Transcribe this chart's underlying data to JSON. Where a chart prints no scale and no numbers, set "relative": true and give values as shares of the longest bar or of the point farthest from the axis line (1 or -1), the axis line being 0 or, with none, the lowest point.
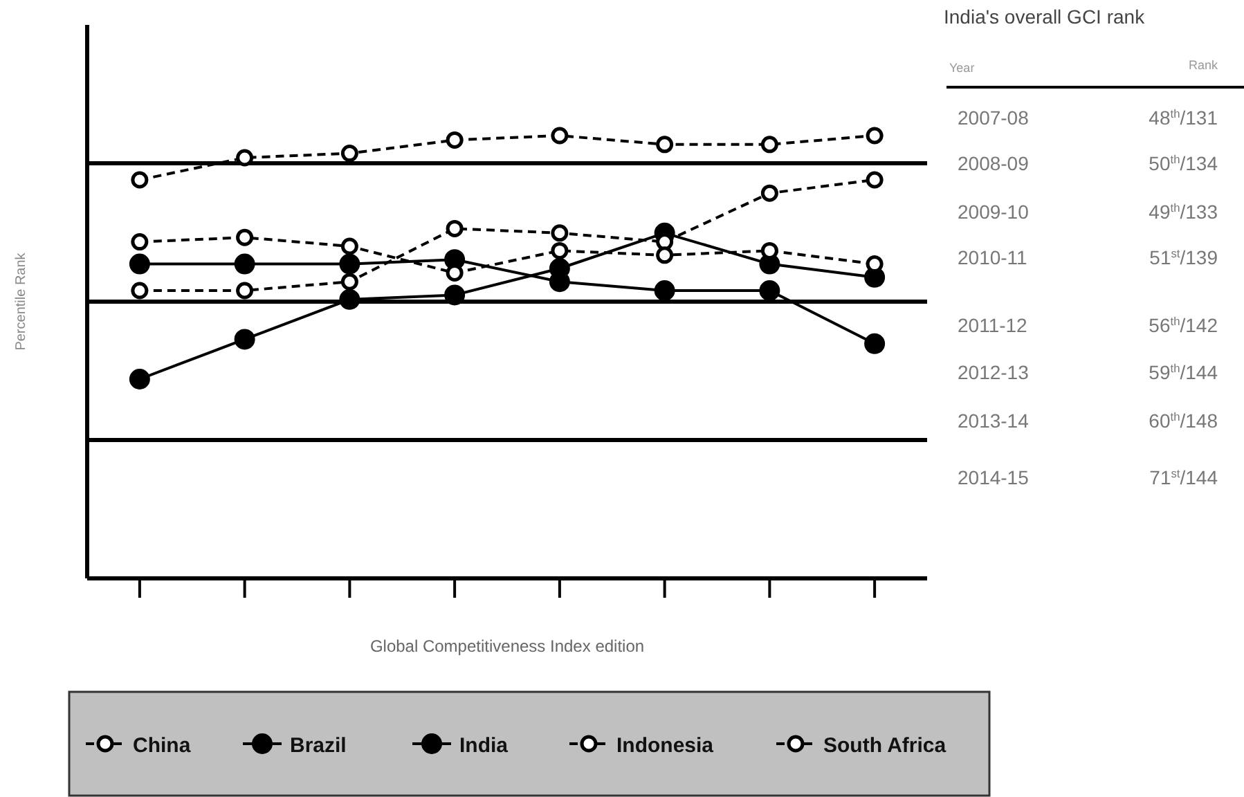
{
  "chart_data": {
    "type": "line",
    "relative": true,
    "xlabel": "Global Competitiveness Index edition",
    "ylabel": "Percentile Rank",
    "categories": [
      null,
      null,
      null,
      null,
      null,
      null,
      null,
      null
    ],
    "series": [
      {
        "name": "China",
        "color": "#000000",
        "line_style": "dashed",
        "values": [
          0.9,
          0.95,
          0.96,
          0.99,
          1,
          0.98,
          0.98,
          1
        ]
      },
      {
        "name": "Brazil",
        "color": "#000000",
        "line_style": "solid",
        "values": [
          0.45,
          0.54,
          0.63,
          0.64,
          0.7,
          0.78,
          0.71,
          0.68
        ]
      },
      {
        "name": "India",
        "color": "#000000",
        "line_style": "solid",
        "values": [
          0.71,
          0.71,
          0.71,
          0.72,
          0.67,
          0.65,
          0.65,
          0.53
        ]
      },
      {
        "name": "Indonesia",
        "color": "#000000",
        "line_style": "dashed",
        "values": [
          0.65,
          0.65,
          0.67,
          0.79,
          0.78,
          0.76,
          0.87,
          0.9
        ]
      },
      {
        "name": "South Africa",
        "color": "#000000",
        "line_style": "dashed",
        "values": [
          0.76,
          0.77,
          0.75,
          0.69,
          0.74,
          0.73,
          0.74,
          0.71
        ]
      }
    ],
    "marker": "circle",
    "grid": "y",
    "legend": "bottom",
    "annotations": [
      "India's overall GCI rank",
      "Year",
      "Rank",
      "2007-08",
      "48$^{th}$/131",
      "2008-09",
      "50$^{th}$/134",
      "2009-10",
      "49$^{th}$/133",
      "2010-11",
      "51$^{st}$/139",
      "2011-12",
      "56$^{th}$/142",
      "2012-13",
      "59$^{th}$/144",
      "2013-14",
      "60$^{th}$/148",
      "2014-15",
      "71$^{st}$/144"
    ]
  }
}
